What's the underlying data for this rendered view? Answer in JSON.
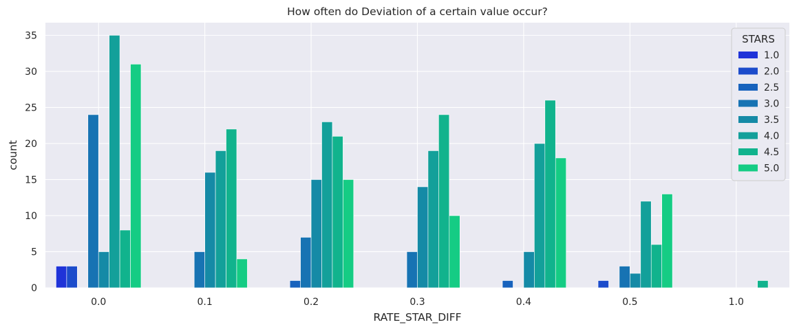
{
  "chart_data": {
    "type": "bar",
    "title": "How often do Deviation of a certain value occur?",
    "xlabel": "RATE_STAR_DIFF",
    "ylabel": "count",
    "ylim": [
      0,
      36.75
    ],
    "yticks": [
      0,
      5,
      10,
      15,
      20,
      25,
      30,
      35
    ],
    "categories": [
      "0.0",
      "0.1",
      "0.2",
      "0.3",
      "0.4",
      "0.5",
      "1.0"
    ],
    "grid": true,
    "legend": {
      "title": "STARS",
      "placement": "top-right"
    },
    "series": [
      {
        "name": "1.0",
        "color": "#1f33d8",
        "values": [
          3,
          0,
          0,
          0,
          0,
          0,
          0
        ]
      },
      {
        "name": "2.0",
        "color": "#1c4ccb",
        "values": [
          3,
          0,
          0,
          0,
          0,
          1,
          0
        ]
      },
      {
        "name": "2.5",
        "color": "#1863bd",
        "values": [
          0,
          0,
          1,
          0,
          1,
          0,
          0
        ]
      },
      {
        "name": "3.0",
        "color": "#1773b3",
        "values": [
          24,
          5,
          7,
          5,
          0,
          3,
          0
        ]
      },
      {
        "name": "3.5",
        "color": "#158aa6",
        "values": [
          5,
          16,
          15,
          14,
          5,
          2,
          0
        ]
      },
      {
        "name": "4.0",
        "color": "#13a09a",
        "values": [
          35,
          19,
          23,
          19,
          20,
          12,
          0
        ]
      },
      {
        "name": "4.5",
        "color": "#11b38d",
        "values": [
          8,
          22,
          21,
          24,
          26,
          6,
          1
        ]
      },
      {
        "name": "5.0",
        "color": "#15cc84",
        "values": [
          31,
          4,
          15,
          10,
          18,
          13,
          0
        ]
      }
    ]
  }
}
